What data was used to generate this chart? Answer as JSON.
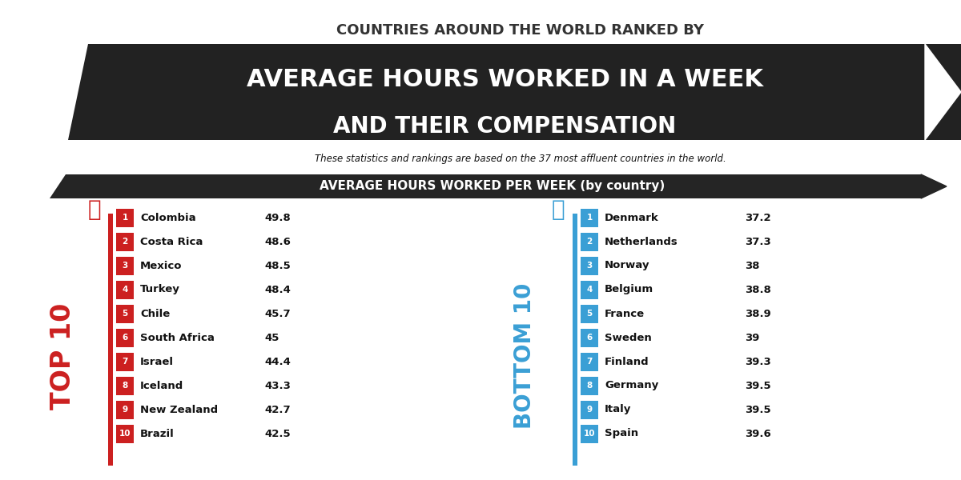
{
  "title_top": "COUNTRIES AROUND THE WORLD RANKED BY",
  "title_main1": "AVERAGE HOURS WORKED IN A WEEK",
  "title_main2": "AND THEIR COMPENSATION",
  "subtitle": "These statistics and rankings are based on the 37 most affluent countries in the world.",
  "section_header": "AVERAGE HOURS WORKED PER WEEK (by country)",
  "top10_label": "TOP 10",
  "bottom10_label": "BOTTOM 10",
  "top10_countries": [
    "Colombia",
    "Costa Rica",
    "Mexico",
    "Turkey",
    "Chile",
    "South Africa",
    "Israel",
    "Iceland",
    "New Zealand",
    "Brazil"
  ],
  "top10_values": [
    "49.8",
    "48.6",
    "48.5",
    "48.4",
    "45.7",
    "45",
    "44.4",
    "43.3",
    "42.7",
    "42.5"
  ],
  "bottom10_countries": [
    "Denmark",
    "Netherlands",
    "Norway",
    "Belgium",
    "France",
    "Sweden",
    "Finland",
    "Germany",
    "Italy",
    "Spain"
  ],
  "bottom10_values": [
    "37.2",
    "37.3",
    "38",
    "38.8",
    "38.9",
    "39",
    "39.3",
    "39.5",
    "39.5",
    "39.6"
  ],
  "bg_color": "#ffffff",
  "black_banner_color": "#222222",
  "red_color": "#cc2020",
  "blue_color": "#3a9fd5",
  "dark_text": "#111111",
  "title_top_color": "#333333",
  "section_bg": "#252525"
}
